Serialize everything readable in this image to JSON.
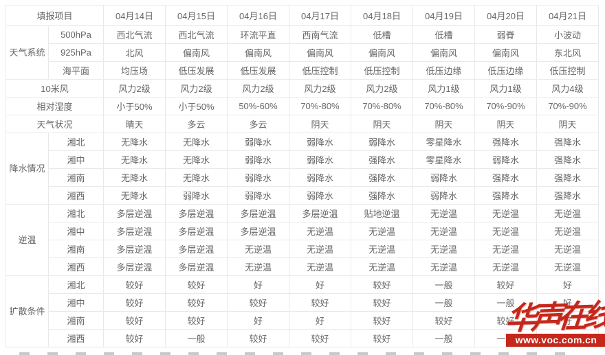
{
  "chart_data": {
    "type": "table",
    "header": {
      "project": "填报项目",
      "dates": [
        "04月14日",
        "04月15日",
        "04月16日",
        "04月17日",
        "04月18日",
        "04月19日",
        "04月20日",
        "04月21日"
      ]
    },
    "weather_system": {
      "label": "天气系统",
      "rows": [
        {
          "sub": "500hPa",
          "values": [
            "西北气流",
            "西北气流",
            "环流平直",
            "西南气流",
            "低槽",
            "低槽",
            "弱脊",
            "小波动"
          ]
        },
        {
          "sub": "925hPa",
          "values": [
            "北风",
            "偏南风",
            "偏南风",
            "偏南风",
            "偏南风",
            "偏南风",
            "偏南风",
            "东北风"
          ]
        },
        {
          "sub": "海平面",
          "values": [
            "均压场",
            "低压发展",
            "低压发展",
            "低压控制",
            "低压控制",
            "低压边缘",
            "低压边缘",
            "低压控制"
          ]
        }
      ]
    },
    "wind10m": {
      "label": "10米风",
      "values": [
        "风力2级",
        "风力2级",
        "风力2级",
        "风力2级",
        "风力2级",
        "风力1级",
        "风力1级",
        "风力4级"
      ]
    },
    "humidity": {
      "label": "相对湿度",
      "values": [
        "小于50%",
        "小于50%",
        "50%-60%",
        "70%-80%",
        "70%-80%",
        "70%-80%",
        "70%-90%",
        "70%-90%"
      ]
    },
    "sky": {
      "label": "天气状况",
      "values": [
        "晴天",
        "多云",
        "多云",
        "阴天",
        "阴天",
        "阴天",
        "阴天",
        "阴天"
      ]
    },
    "precipitation": {
      "label": "降水情况",
      "rows": [
        {
          "sub": "湘北",
          "values": [
            "无降水",
            "无降水",
            "弱降水",
            "弱降水",
            "弱降水",
            "零星降水",
            "强降水",
            "强降水"
          ]
        },
        {
          "sub": "湘中",
          "values": [
            "无降水",
            "无降水",
            "弱降水",
            "弱降水",
            "强降水",
            "零星降水",
            "弱降水",
            "强降水"
          ]
        },
        {
          "sub": "湘南",
          "values": [
            "无降水",
            "无降水",
            "弱降水",
            "弱降水",
            "强降水",
            "弱降水",
            "强降水",
            "强降水"
          ]
        },
        {
          "sub": "湘西",
          "values": [
            "无降水",
            "弱降水",
            "弱降水",
            "弱降水",
            "强降水",
            "弱降水",
            "强降水",
            "强降水"
          ]
        }
      ]
    },
    "inversion": {
      "label": "逆温",
      "rows": [
        {
          "sub": "湘北",
          "values": [
            "多层逆温",
            "多层逆温",
            "多层逆温",
            "多层逆温",
            "贴地逆温",
            "无逆温",
            "无逆温",
            "无逆温"
          ]
        },
        {
          "sub": "湘中",
          "values": [
            "多层逆温",
            "多层逆温",
            "多层逆温",
            "无逆温",
            "无逆温",
            "无逆温",
            "无逆温",
            "无逆温"
          ]
        },
        {
          "sub": "湘南",
          "values": [
            "多层逆温",
            "多层逆温",
            "无逆温",
            "无逆温",
            "无逆温",
            "无逆温",
            "无逆温",
            "无逆温"
          ]
        },
        {
          "sub": "湘西",
          "values": [
            "多层逆温",
            "多层逆温",
            "无逆温",
            "无逆温",
            "无逆温",
            "无逆温",
            "无逆温",
            "无逆温"
          ]
        }
      ]
    },
    "diffusion": {
      "label": "扩散条件",
      "rows": [
        {
          "sub": "湘北",
          "values": [
            "较好",
            "较好",
            "好",
            "好",
            "较好",
            "一般",
            "较好",
            "好"
          ]
        },
        {
          "sub": "湘中",
          "values": [
            "较好",
            "较好",
            "较好",
            "较好",
            "较好",
            "一般",
            "一般",
            "好"
          ]
        },
        {
          "sub": "湘南",
          "values": [
            "较好",
            "较好",
            "好",
            "好",
            "较好",
            "较好",
            "较好",
            "好"
          ]
        },
        {
          "sub": "湘西",
          "values": [
            "较好",
            "一般",
            "较好",
            "较好",
            "较好",
            "一般",
            "一般",
            "好"
          ]
        }
      ]
    }
  },
  "watermark": {
    "logo": "华声在线",
    "url": "www.voc.com.cn",
    "red": "#c5271a"
  }
}
